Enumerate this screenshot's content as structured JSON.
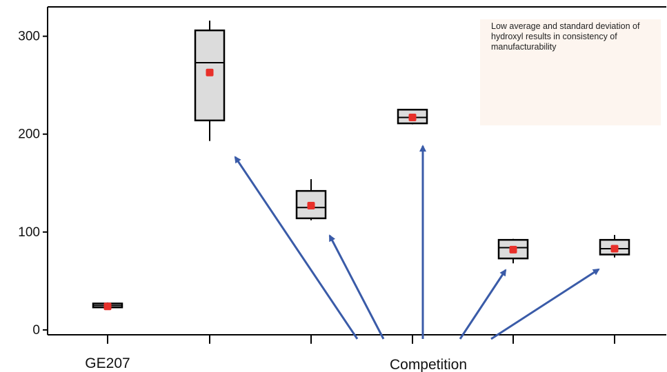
{
  "chart_data": {
    "type": "box",
    "categories": [
      "GE207",
      "",
      "",
      "",
      "",
      ""
    ],
    "y_ticks": [
      "0",
      "100",
      "200",
      "300"
    ],
    "ylim": [
      -5,
      330
    ],
    "boxes": [
      {
        "min": 22,
        "q1": 23,
        "median": 25,
        "q3": 27,
        "max": 28,
        "mean": 24
      },
      {
        "min": 193,
        "q1": 214,
        "median": 273,
        "q3": 306,
        "max": 316,
        "mean": 263
      },
      {
        "min": 112,
        "q1": 114,
        "median": 125,
        "q3": 142,
        "max": 154,
        "mean": 127
      },
      {
        "min": 210,
        "q1": 211,
        "median": 217,
        "q3": 225,
        "max": 225,
        "mean": 217
      },
      {
        "min": 68,
        "q1": 73,
        "median": 84,
        "q3": 92,
        "max": 93,
        "mean": 82
      },
      {
        "min": 74,
        "q1": 77,
        "median": 83,
        "q3": 92,
        "max": 97,
        "mean": 83
      }
    ],
    "annotation": "Low average and standard deviation of hydroxyl results in consistency of manufacturability",
    "group_label": "Competition",
    "colors": {
      "box_fill": "#dcdcdc",
      "mean_marker": "#e8302a",
      "arrow": "#3a5ba8",
      "annotation_bg": "#fdf5ef"
    }
  }
}
